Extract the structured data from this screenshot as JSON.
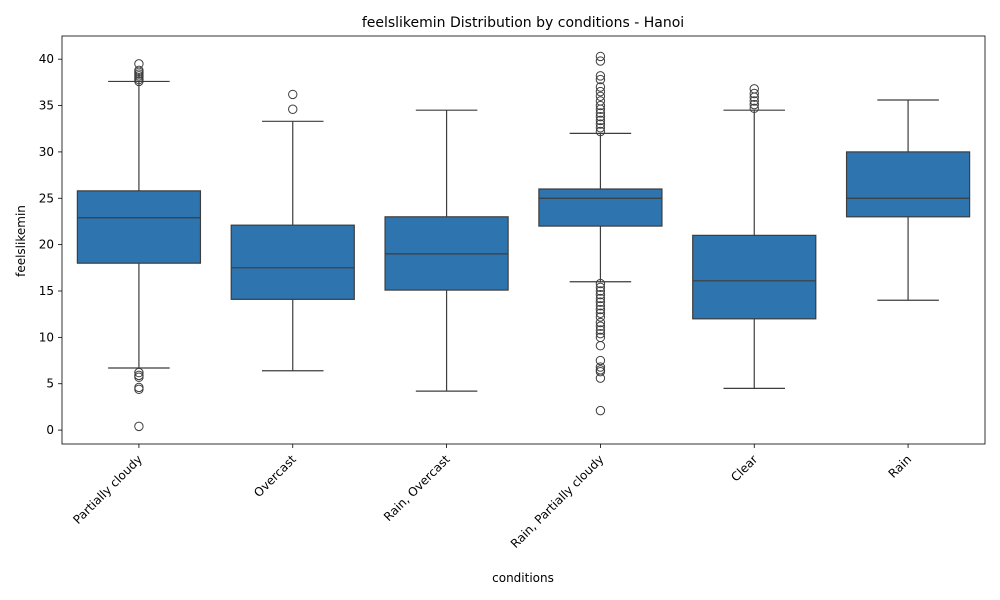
{
  "chart_data": {
    "type": "box",
    "title": "feelslikemin Distribution by conditions - Hanoi",
    "xlabel": "conditions",
    "ylabel": "feelslikemin",
    "ylim": [
      -1.5,
      42.5
    ],
    "yticks": [
      0,
      5,
      10,
      15,
      20,
      25,
      30,
      35,
      40
    ],
    "grid": false,
    "color": "#2e74ae",
    "categories": [
      "Partially cloudy",
      "Overcast",
      "Rain, Overcast",
      "Rain, Partially cloudy",
      "Clear",
      "Rain"
    ],
    "boxes": [
      {
        "whislo": 6.7,
        "q1": 18.0,
        "med": 22.9,
        "q3": 25.8,
        "whishi": 37.6,
        "fliers": [
          37.6,
          37.8,
          38.0,
          38.2,
          38.4,
          38.6,
          38.8,
          39.5,
          6.2,
          5.9,
          5.7,
          4.6,
          4.4,
          0.4
        ]
      },
      {
        "whislo": 6.4,
        "q1": 14.1,
        "med": 17.5,
        "q3": 22.1,
        "whishi": 33.3,
        "fliers": [
          34.6,
          36.2
        ]
      },
      {
        "whislo": 4.2,
        "q1": 15.1,
        "med": 19.0,
        "q3": 23.0,
        "whishi": 34.5,
        "fliers": []
      },
      {
        "whislo": 16.0,
        "q1": 22.0,
        "med": 25.0,
        "q3": 26.0,
        "whishi": 32.0,
        "fliers": [
          32.2,
          32.6,
          33.0,
          33.4,
          33.8,
          34.2,
          34.6,
          35.0,
          35.5,
          36.0,
          36.5,
          37.0,
          37.8,
          38.2,
          39.8,
          40.3,
          15.8,
          15.4,
          15.0,
          14.6,
          14.2,
          13.8,
          13.4,
          13.0,
          12.6,
          12.2,
          11.6,
          11.2,
          10.8,
          10.4,
          10.0,
          9.1,
          7.5,
          6.8,
          6.5,
          6.3,
          5.6,
          2.1
        ]
      },
      {
        "whislo": 4.5,
        "q1": 12.0,
        "med": 16.1,
        "q3": 21.0,
        "whishi": 34.5,
        "fliers": [
          34.7,
          35.1,
          35.5,
          35.9,
          36.3,
          36.8
        ]
      },
      {
        "whislo": 14.0,
        "q1": 23.0,
        "med": 25.0,
        "q3": 30.0,
        "whishi": 35.6,
        "fliers": []
      }
    ]
  }
}
